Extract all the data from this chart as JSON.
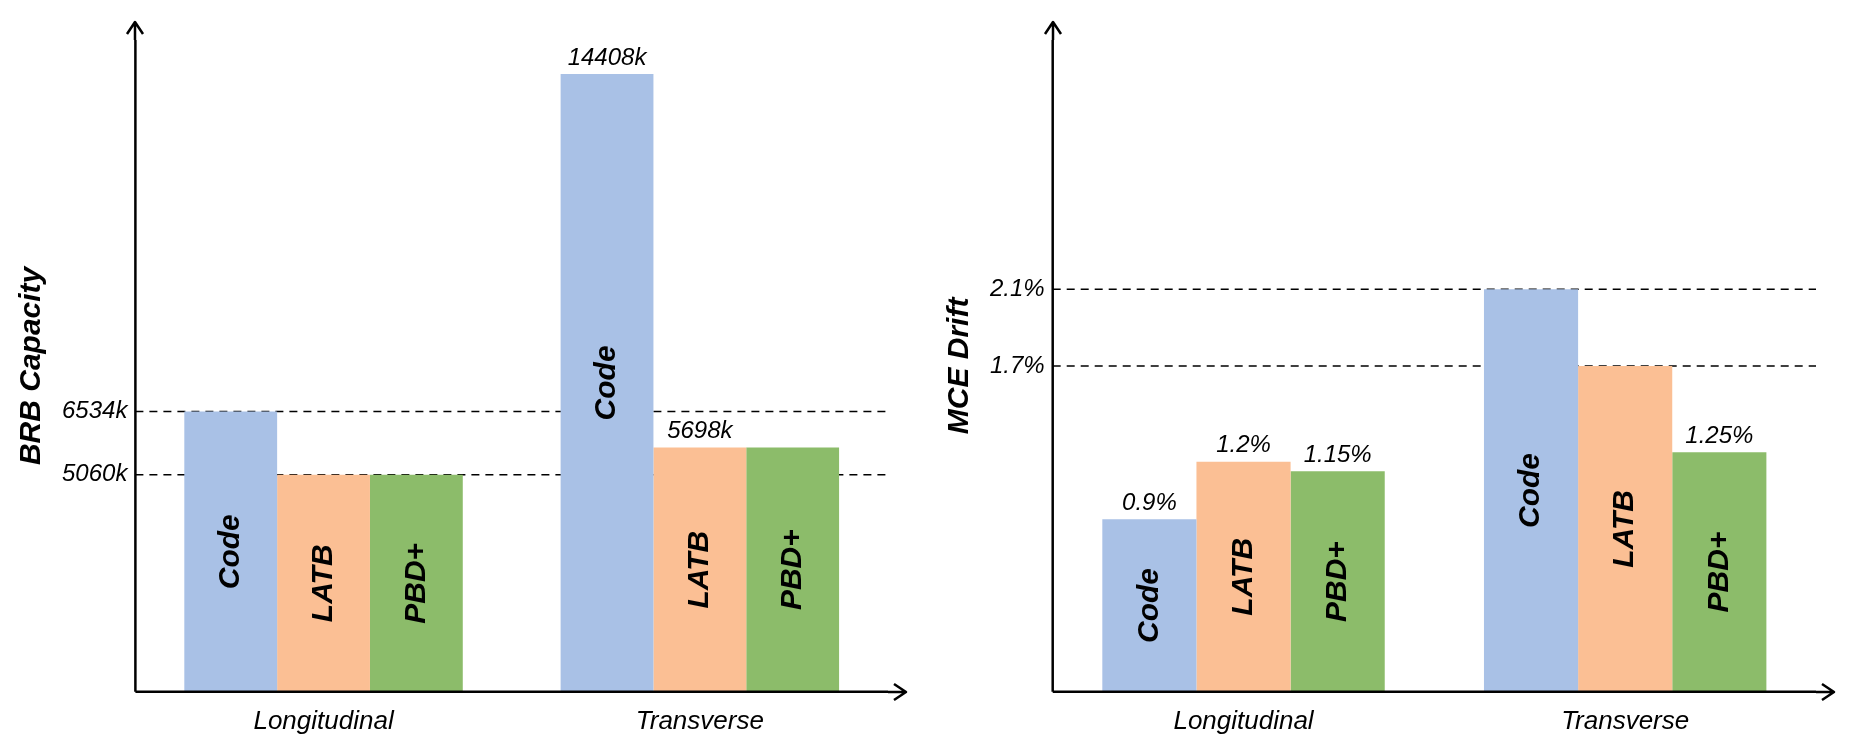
{
  "chart_data": [
    {
      "type": "bar",
      "ylabel": "BRB Capacity",
      "categories": [
        "Longitudinal",
        "Transverse"
      ],
      "series": [
        {
          "name": "Code",
          "color": "#a9c1e6",
          "values": [
            6534,
            14408
          ],
          "value_labels": [
            null,
            "14408k"
          ]
        },
        {
          "name": "LATB",
          "color": "#fbbf94",
          "values": [
            5060,
            5698
          ],
          "value_labels": [
            null,
            "5698k"
          ]
        },
        {
          "name": "PBD+",
          "color": "#8cbc6a",
          "values": [
            5060,
            5698
          ],
          "value_labels": [
            null,
            null
          ]
        }
      ],
      "ylim": [
        0,
        15200
      ],
      "yticks": [
        {
          "value": 5060,
          "label": "5060k"
        },
        {
          "value": 6534,
          "label": "6534k"
        }
      ],
      "ref_lines": [
        {
          "axis": "y",
          "value": 5060,
          "line_style": "dashed"
        },
        {
          "axis": "y",
          "value": 6534,
          "line_style": "dashed"
        }
      ],
      "grid": false,
      "legend": false
    },
    {
      "type": "bar",
      "ylabel": "MCE Drift",
      "categories": [
        "Longitudinal",
        "Transverse"
      ],
      "series": [
        {
          "name": "Code",
          "color": "#a9c1e6",
          "values": [
            0.9,
            2.1
          ],
          "value_labels": [
            "0.9%",
            null
          ]
        },
        {
          "name": "LATB",
          "color": "#fbbf94",
          "values": [
            1.2,
            1.7
          ],
          "value_labels": [
            "1.2%",
            null
          ]
        },
        {
          "name": "PBD+",
          "color": "#8cbc6a",
          "values": [
            1.15,
            1.25
          ],
          "value_labels": [
            "1.15%",
            "1.25%"
          ]
        }
      ],
      "ylim": [
        0,
        3.4
      ],
      "yticks": [
        {
          "value": 1.7,
          "label": "1.7%"
        },
        {
          "value": 2.1,
          "label": "2.1%"
        }
      ],
      "ref_lines": [
        {
          "axis": "y",
          "value": 1.7,
          "line_style": "dashed"
        },
        {
          "axis": "y",
          "value": 2.1,
          "line_style": "dashed"
        }
      ],
      "grid": false,
      "legend": false
    }
  ]
}
